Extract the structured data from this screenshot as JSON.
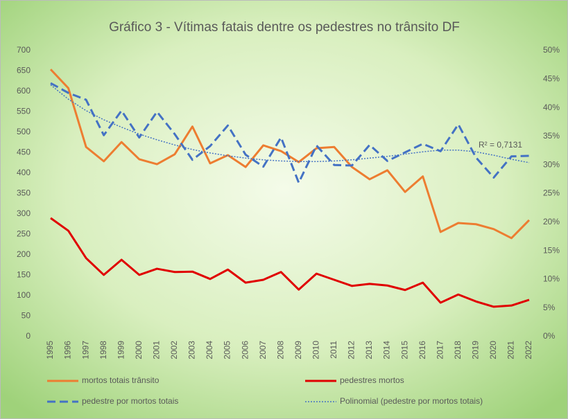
{
  "chart_data": {
    "type": "line",
    "title": "Gráfico 3 - Vítimas fatais dentre os pedestres no trânsito DF",
    "categories": [
      "1995",
      "1996",
      "1997",
      "1998",
      "1999",
      "2000",
      "2001",
      "2002",
      "2003",
      "2004",
      "2005",
      "2006",
      "2007",
      "2008",
      "2009",
      "2010",
      "2011",
      "2012",
      "2013",
      "2014",
      "2015",
      "2016",
      "2017",
      "2018",
      "2019",
      "2020",
      "2021",
      "2022"
    ],
    "series": [
      {
        "name": "mortos totais trânsito",
        "color": "#ed7d31",
        "style": "solid",
        "values": [
          654,
          608,
          464,
          429,
          476,
          434,
          422,
          446,
          514,
          424,
          444,
          415,
          468,
          454,
          427,
          461,
          464,
          415,
          385,
          407,
          354,
          392,
          256,
          278,
          275,
          263,
          241,
          285
        ]
      },
      {
        "name": "pedestres mortos",
        "color": "#e00000",
        "style": "solid",
        "values": [
          290,
          259,
          192,
          151,
          188,
          151,
          166,
          158,
          159,
          141,
          164,
          132,
          139,
          158,
          115,
          154,
          139,
          124,
          129,
          125,
          114,
          132,
          83,
          103,
          86,
          73,
          76,
          90
        ]
      },
      {
        "name": "pedestre por mortos totais",
        "color": "#4472c4",
        "style": "dashed",
        "axis": "y2",
        "values": [
          44.3,
          42.6,
          41.4,
          35.2,
          39.5,
          34.8,
          39.3,
          35.4,
          30.9,
          33.3,
          36.9,
          31.8,
          29.7,
          34.8,
          26.9,
          33.4,
          30.0,
          29.9,
          33.5,
          30.7,
          32.2,
          33.7,
          32.4,
          37.1,
          31.3,
          27.8,
          31.5,
          31.6
        ]
      },
      {
        "name": "Polinomial (pedestre por mortos totais)",
        "color": "#4472c4",
        "style": "dotted",
        "axis": "y2",
        "values": [
          44.0,
          41.5,
          39.5,
          37.9,
          36.6,
          35.4,
          34.4,
          33.5,
          32.7,
          32.1,
          31.6,
          31.2,
          30.9,
          30.7,
          30.6,
          30.6,
          30.7,
          30.9,
          31.2,
          31.5,
          31.9,
          32.3,
          32.6,
          32.6,
          32.3,
          31.7,
          31.0,
          30.4
        ]
      }
    ],
    "annotation": "R² = 0,7131",
    "ylim": [
      0,
      700
    ],
    "yticks": [
      0,
      50,
      100,
      150,
      200,
      250,
      300,
      350,
      400,
      450,
      500,
      550,
      600,
      650,
      700
    ],
    "y2lim": [
      0,
      50
    ],
    "y2ticks": [
      {
        "value": 0,
        "label": "0%"
      },
      {
        "value": 5,
        "label": "5%"
      },
      {
        "value": 10,
        "label": "10%"
      },
      {
        "value": 15,
        "label": "15%"
      },
      {
        "value": 20,
        "label": "20%"
      },
      {
        "value": 25,
        "label": "25%"
      },
      {
        "value": 30,
        "label": "30%"
      },
      {
        "value": 35,
        "label": "35%"
      },
      {
        "value": 40,
        "label": "40%"
      },
      {
        "value": 45,
        "label": "45%"
      },
      {
        "value": 50,
        "label": "50%"
      }
    ],
    "grid": false
  }
}
